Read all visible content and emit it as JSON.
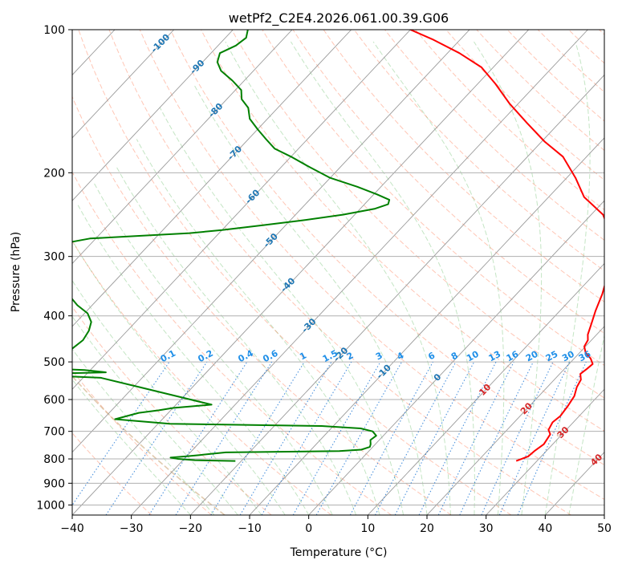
{
  "chart_data": {
    "type": "line",
    "title": "wetPf2_C2E4.2026.061.00.39.G06",
    "xlabel": "Temperature (°C)",
    "ylabel": "Pressure (hPa)",
    "xlim": [
      -40,
      50
    ],
    "ylim": [
      1050,
      100
    ],
    "x_ticks": [
      "−40",
      "−30",
      "−20",
      "−10",
      "0",
      "10",
      "20",
      "30",
      "40",
      "50"
    ],
    "y_ticks": [
      "100",
      "200",
      "300",
      "400",
      "500",
      "600",
      "700",
      "800",
      "900",
      "1000"
    ],
    "isotherm_labels": [
      "-100",
      "-90",
      "-80",
      "-70",
      "-60",
      "-50",
      "-40",
      "-30",
      "-20",
      "-10",
      "0",
      "10",
      "20",
      "30",
      "40"
    ],
    "mixing_ratio_labels": [
      "0.1",
      "0.2",
      "0.4",
      "0.6",
      "1",
      "1.5",
      "2",
      "3",
      "4",
      "6",
      "8",
      "10",
      "13",
      "16",
      "20",
      "25",
      "30",
      "36"
    ],
    "series": [
      {
        "role": "temperature",
        "color": "#ff0000",
        "points": [
          [
            26.5,
            808
          ],
          [
            27.8,
            790
          ],
          [
            28.0,
            770
          ],
          [
            28.5,
            745
          ],
          [
            28.0,
            710
          ],
          [
            27.0,
            695
          ],
          [
            26.5,
            670
          ],
          [
            26.8,
            650
          ],
          [
            26.5,
            620
          ],
          [
            26.0,
            590
          ],
          [
            25.0,
            565
          ],
          [
            24.5,
            545
          ],
          [
            23.5,
            530
          ],
          [
            23.8,
            517
          ],
          [
            24.0,
            505
          ],
          [
            22.8,
            492
          ],
          [
            21.0,
            478
          ],
          [
            19.8,
            464
          ],
          [
            19.4,
            450
          ],
          [
            18.5,
            438
          ],
          [
            17.5,
            418
          ],
          [
            16.0,
            390
          ],
          [
            14.5,
            360
          ],
          [
            12.5,
            330
          ],
          [
            10.0,
            300
          ],
          [
            6.5,
            270
          ],
          [
            2.0,
            245
          ],
          [
            -4.0,
            225
          ],
          [
            -8.5,
            205
          ],
          [
            -14.0,
            185
          ],
          [
            -19.5,
            172
          ],
          [
            -25.5,
            157
          ],
          [
            -31.5,
            143
          ],
          [
            -37.0,
            130
          ],
          [
            -42.0,
            120
          ],
          [
            -48.0,
            112
          ],
          [
            -54.5,
            105
          ],
          [
            -60.0,
            100
          ]
        ]
      },
      {
        "role": "dewpoint",
        "color": "#008000",
        "points": [
          [
            -21.0,
            808
          ],
          [
            -28.0,
            805
          ],
          [
            -31.0,
            800
          ],
          [
            -32.5,
            795
          ],
          [
            -30.0,
            790
          ],
          [
            -28.0,
            785
          ],
          [
            -26.0,
            780
          ],
          [
            -24.0,
            775
          ],
          [
            -5.0,
            770
          ],
          [
            -1.5,
            765
          ],
          [
            -0.5,
            755
          ],
          [
            -0.8,
            745
          ],
          [
            -1.5,
            730
          ],
          [
            -1.2,
            715
          ],
          [
            -2.5,
            700
          ],
          [
            -5.0,
            690
          ],
          [
            -12.0,
            682
          ],
          [
            -38.0,
            675
          ],
          [
            -48.0,
            660
          ],
          [
            -45.0,
            640
          ],
          [
            -42.0,
            632
          ],
          [
            -40.0,
            625
          ],
          [
            -34.0,
            615
          ],
          [
            -49.0,
            565
          ],
          [
            -57.0,
            540
          ],
          [
            -68.0,
            533
          ],
          [
            -65.0,
            529
          ],
          [
            -57.0,
            526
          ],
          [
            -61.0,
            520
          ],
          [
            -72.0,
            514
          ],
          [
            -74.5,
            510
          ],
          [
            -71.0,
            505
          ],
          [
            -68.0,
            495
          ],
          [
            -66.5,
            470
          ],
          [
            -66.0,
            450
          ],
          [
            -66.5,
            430
          ],
          [
            -67.5,
            412
          ],
          [
            -69.5,
            395
          ],
          [
            -72.5,
            380
          ],
          [
            -75.0,
            365
          ],
          [
            -77.0,
            350
          ],
          [
            -79.0,
            330
          ],
          [
            -80.5,
            312
          ],
          [
            -81.5,
            300
          ],
          [
            -82.5,
            290
          ],
          [
            -83.8,
            280
          ],
          [
            -81.0,
            275
          ],
          [
            -65.0,
            268
          ],
          [
            -60.0,
            264
          ],
          [
            -54.0,
            258
          ],
          [
            -48.0,
            252
          ],
          [
            -42.0,
            245
          ],
          [
            -37.5,
            238
          ],
          [
            -36.0,
            233
          ],
          [
            -36.5,
            228
          ],
          [
            -39.5,
            222
          ],
          [
            -44.0,
            214
          ],
          [
            -50.0,
            205
          ],
          [
            -55.0,
            195
          ],
          [
            -60.0,
            185
          ],
          [
            -64.0,
            178
          ],
          [
            -67.0,
            170
          ],
          [
            -70.0,
            162
          ],
          [
            -73.0,
            154
          ],
          [
            -75.0,
            146
          ],
          [
            -77.5,
            140
          ],
          [
            -79.0,
            134
          ],
          [
            -82.0,
            128
          ],
          [
            -85.5,
            122
          ],
          [
            -87.5,
            117
          ],
          [
            -88.5,
            112
          ],
          [
            -87.0,
            108
          ],
          [
            -86.5,
            104
          ],
          [
            -87.5,
            100
          ]
        ]
      }
    ],
    "grid": true,
    "legend": "none"
  }
}
